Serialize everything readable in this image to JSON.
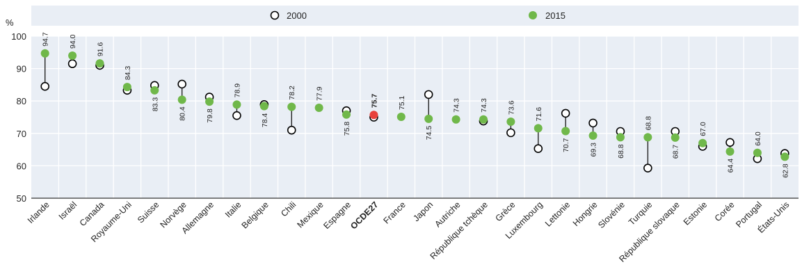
{
  "chart_data": {
    "type": "scatter",
    "ylabel": "%",
    "ylim": [
      50,
      100
    ],
    "yticks": [
      50,
      60,
      70,
      80,
      90,
      100
    ],
    "categories": [
      "Irlande",
      "Israël",
      "Canada",
      "Royaume-Uni",
      "Suisse",
      "Norvège",
      "Allemagne",
      "Italie",
      "Belgique",
      "Chili",
      "Mexique",
      "Espagne",
      "OCDE27",
      "France",
      "Japon",
      "Autriche",
      "République tchèque",
      "Grèce",
      "Luxembourg",
      "Lettonie",
      "Hongrie",
      "Slovénie",
      "Turquie",
      "République slovaque",
      "Estonie",
      "Corée",
      "Portugal",
      "États-Unis"
    ],
    "highlight_category": "OCDE27",
    "series": [
      {
        "name": "2000",
        "values": [
          84.5,
          91.5,
          91.0,
          83.3,
          84.8,
          85.2,
          81.2,
          75.5,
          78.9,
          71.0,
          null,
          77.0,
          75.0,
          null,
          82.0,
          null,
          73.8,
          70.2,
          65.3,
          76.2,
          73.2,
          70.6,
          59.3,
          70.6,
          66.0,
          67.2,
          62.2,
          63.8
        ],
        "color": "#000000"
      },
      {
        "name": "2015",
        "values": [
          94.7,
          94.0,
          91.6,
          84.3,
          83.3,
          80.4,
          79.8,
          78.9,
          78.4,
          78.2,
          77.9,
          75.8,
          75.7,
          75.1,
          74.5,
          74.3,
          74.3,
          73.6,
          71.6,
          70.7,
          69.3,
          68.8,
          68.8,
          68.7,
          67.0,
          64.4,
          64.0,
          62.8
        ],
        "color": "#70b84a",
        "highlight_color": "#e8413c"
      }
    ],
    "data_labels": [
      "94.7",
      "94.0",
      "91.6",
      "84.3",
      "83.3",
      "80.4",
      "79.8",
      "78.9",
      "78.4",
      "78.2",
      "77.9",
      "75.8",
      "75.7",
      "75.1",
      "74.5",
      "74.3",
      "74.3",
      "73.6",
      "71.6",
      "70.7",
      "69.3",
      "68.8",
      "68.8",
      "68.7",
      "67.0",
      "64.4",
      "64.0",
      "62.8"
    ],
    "label_position": [
      "above",
      "above",
      "above",
      "above",
      "below",
      "below",
      "below",
      "above",
      "below",
      "above",
      "above",
      "below",
      "above",
      "above",
      "below",
      "above",
      "above",
      "above",
      "above",
      "below",
      "below",
      "below",
      "above",
      "below",
      "above",
      "below",
      "above",
      "below"
    ],
    "grid": true,
    "legend_position": "top"
  }
}
